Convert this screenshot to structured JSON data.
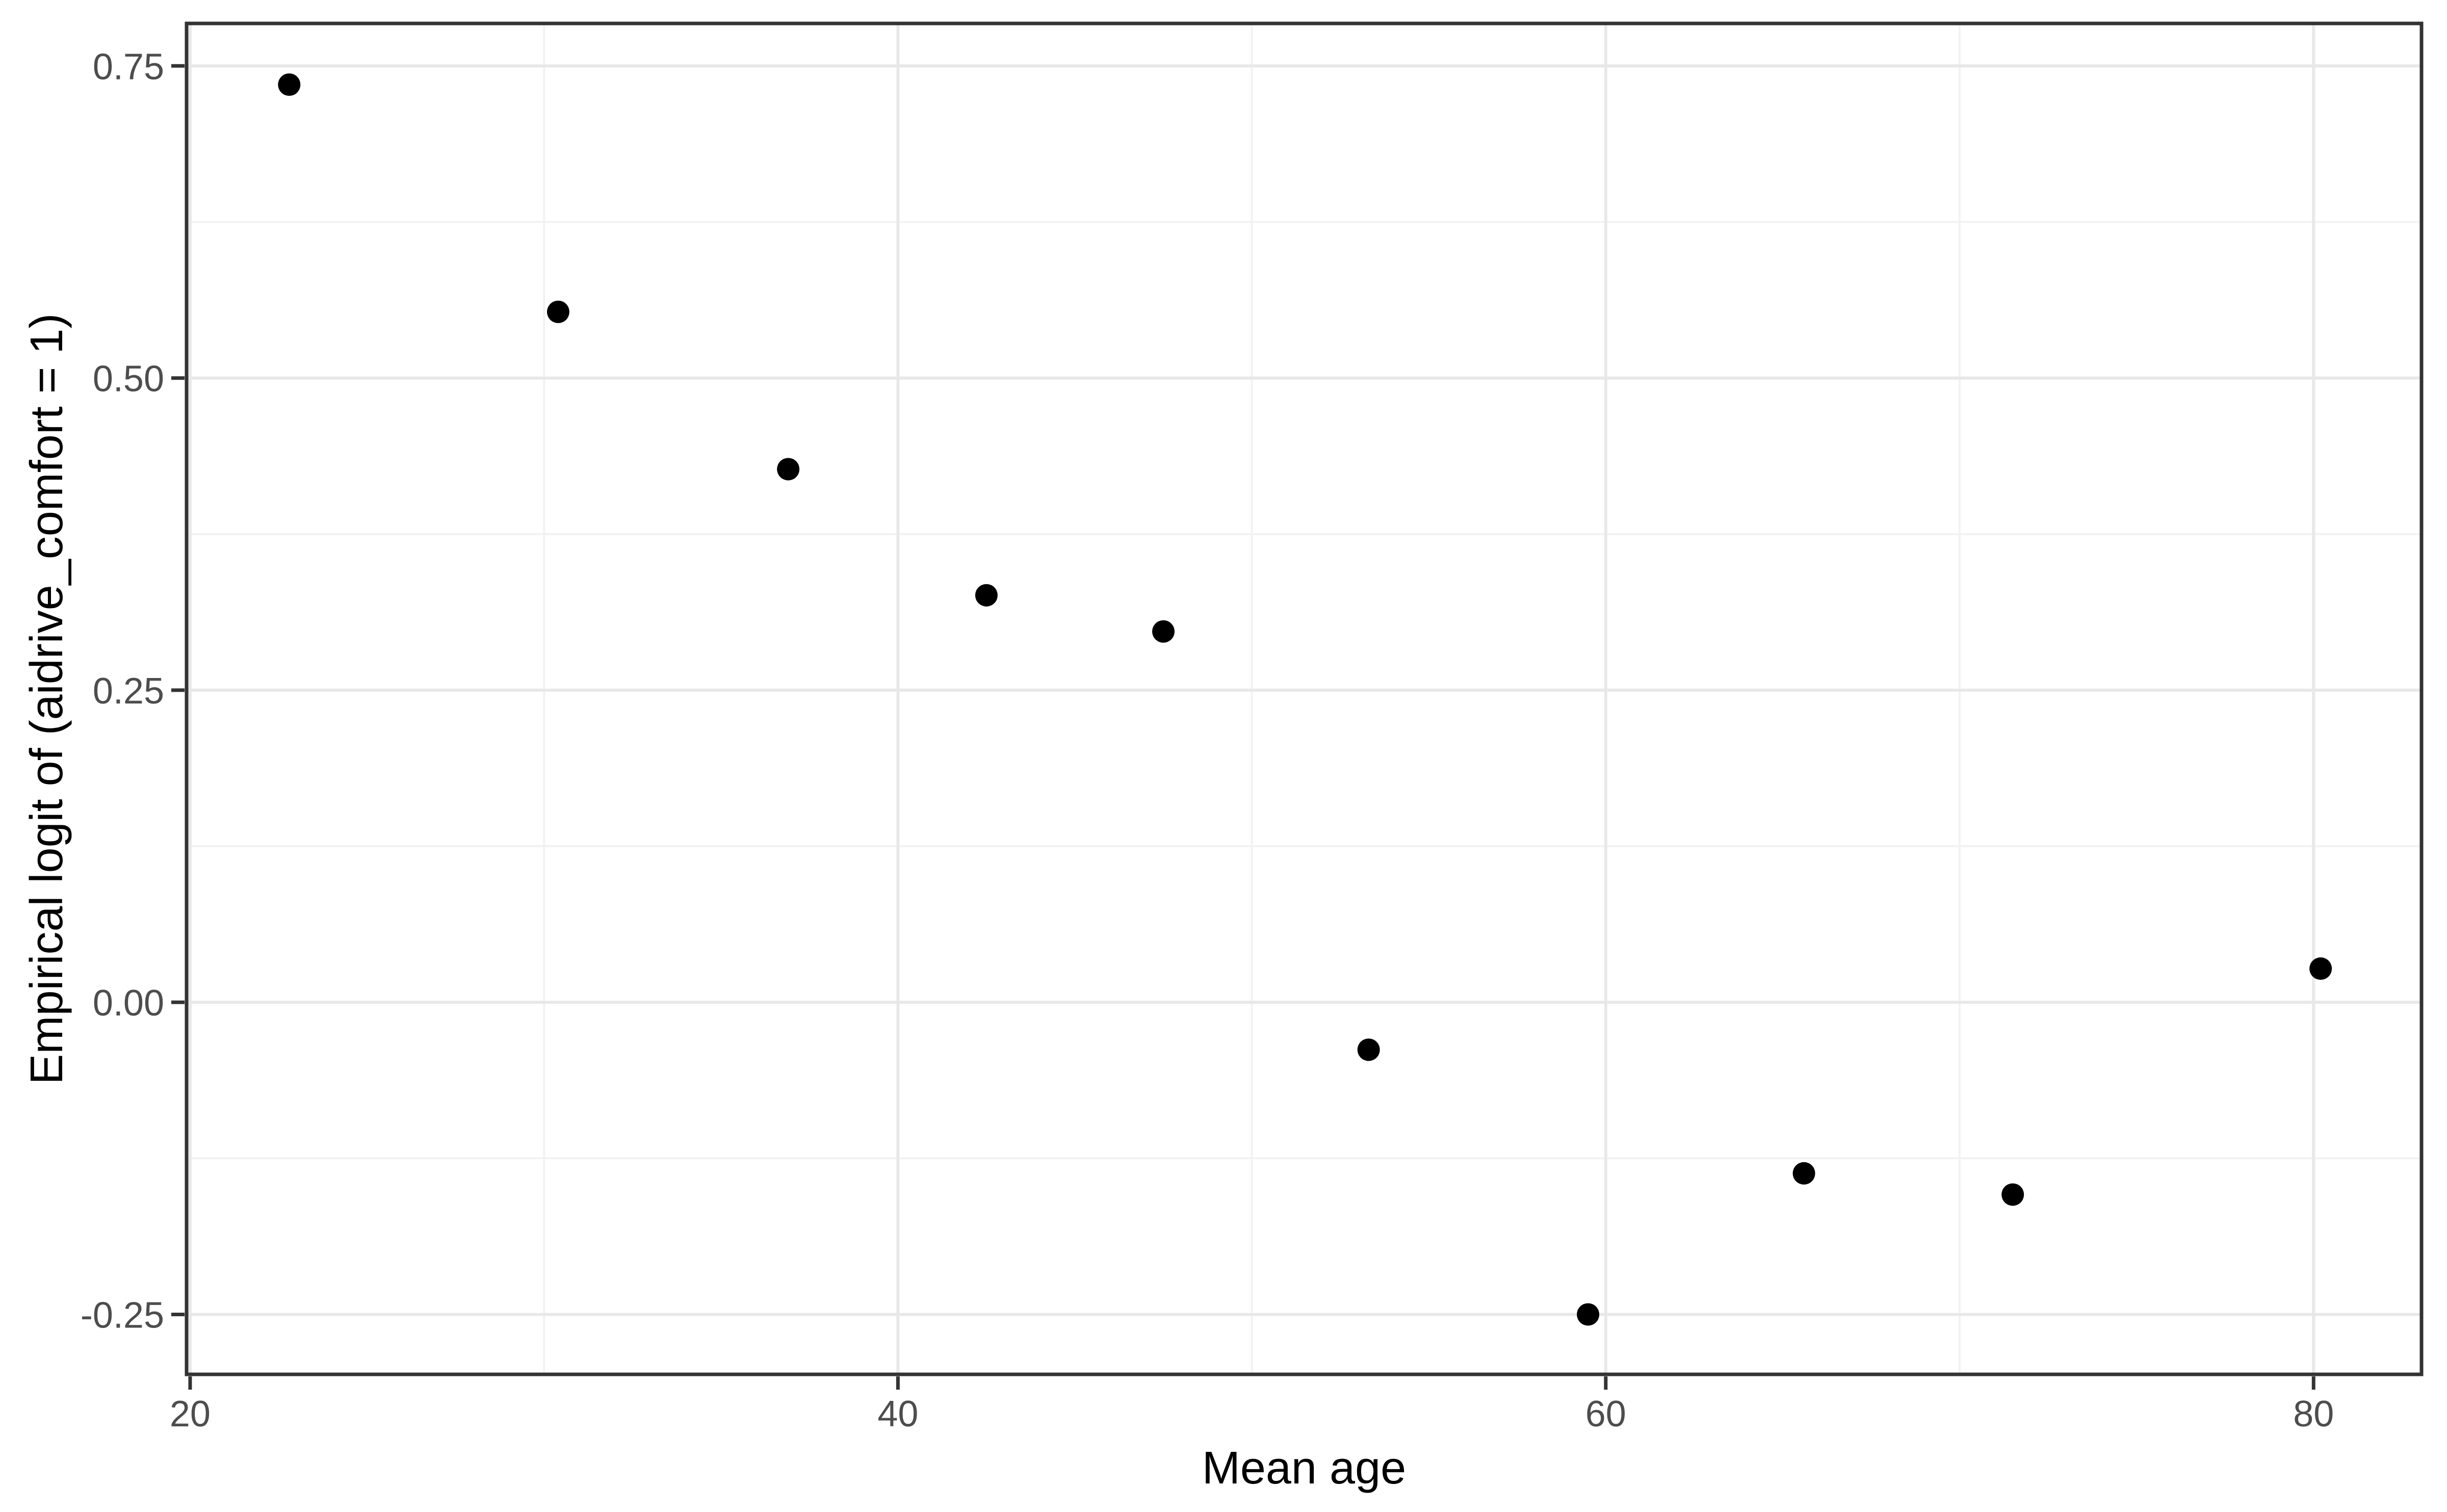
{
  "figure": {
    "background": "#FFFFFF"
  },
  "chart_data": {
    "type": "scatter",
    "title": "",
    "xlabel": "Mean age",
    "ylabel": "Empirical logit of (aidrive_comfort = 1)",
    "points": [
      {
        "x": 22.8,
        "y": 0.735
      },
      {
        "x": 30.4,
        "y": 0.553
      },
      {
        "x": 36.9,
        "y": 0.427
      },
      {
        "x": 42.5,
        "y": 0.326
      },
      {
        "x": 47.5,
        "y": 0.297
      },
      {
        "x": 53.3,
        "y": -0.038
      },
      {
        "x": 59.5,
        "y": -0.25
      },
      {
        "x": 65.6,
        "y": -0.137
      },
      {
        "x": 71.5,
        "y": -0.154
      },
      {
        "x": 80.2,
        "y": 0.027
      }
    ],
    "xlim": [
      19.9,
      83.05
    ],
    "ylim": [
      -0.298,
      0.784
    ],
    "x_major_breaks": [
      20,
      40,
      60,
      80
    ],
    "x_tick_labels": [
      "20",
      "40",
      "60",
      "80"
    ],
    "x_minor_breaks": [
      30,
      50,
      70
    ],
    "y_major_breaks": [
      -0.25,
      0.0,
      0.25,
      0.5,
      0.75
    ],
    "y_tick_labels": [
      "-0.25",
      "0.00",
      "0.25",
      "0.50",
      "0.75"
    ],
    "y_minor_breaks": [
      -0.125,
      0.125,
      0.375,
      0.625
    ],
    "grid": true,
    "legend": "none",
    "style": {
      "point_color": "#000000",
      "point_radius_px": 22,
      "grid_major_color": "#E8E8E8",
      "grid_minor_color": "#F1F1F1",
      "panel_border_color": "#333333",
      "tick_color": "#333333",
      "tick_label_color": "#4D4D4D",
      "axis_title_color": "#000000"
    }
  }
}
